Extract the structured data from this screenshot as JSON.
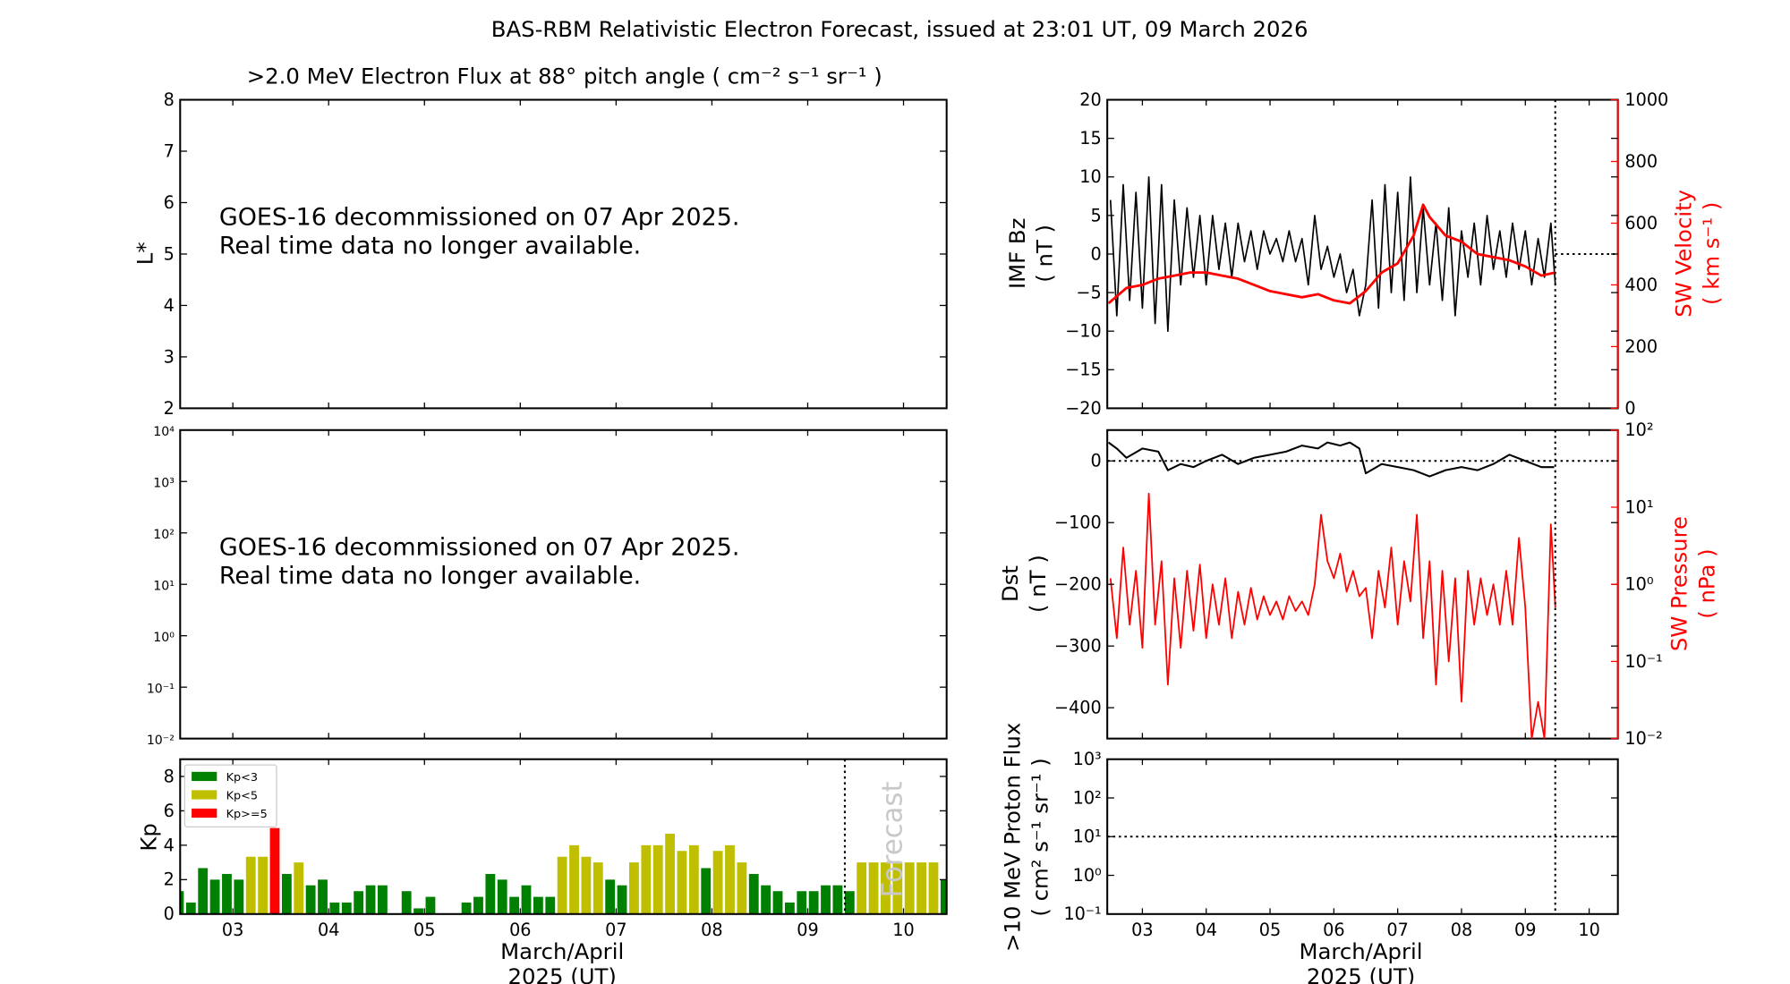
{
  "figure": {
    "title": "BAS-RBM Relativistic Electron Forecast, issued at 23:01 UT, 09 March 2026",
    "x_axis_label_line1": "March/April",
    "x_axis_label_line2": "2025 (UT)"
  },
  "chart_data": [
    {
      "id": "electron_flux_lstar",
      "type": "heatmap",
      "title": ">2.0 MeV Electron Flux at 88° pitch angle ( cm⁻² s⁻¹ sr⁻¹ )",
      "ylabel": "L*",
      "ylim": [
        2,
        8
      ],
      "yticks": [
        "2",
        "3",
        "4",
        "5",
        "6",
        "7",
        "8"
      ],
      "message_line1": "GOES-16 decommissioned on 07 Apr 2025.",
      "message_line2": "Real time data no longer available."
    },
    {
      "id": "electron_flux_geo",
      "type": "line",
      "yscale": "log",
      "ylim": [
        0.01,
        10000
      ],
      "yticks": [
        "10⁻²",
        "10⁻¹",
        "10⁰",
        "10¹",
        "10²",
        "10³",
        "10⁴"
      ],
      "message_line1": "GOES-16 decommissioned on 07 Apr 2025.",
      "message_line2": "Real time data no longer available."
    },
    {
      "id": "kp",
      "type": "bar",
      "ylabel": "Kp",
      "ylim": [
        0,
        9
      ],
      "yticks": [
        "0",
        "2",
        "4",
        "6",
        "8"
      ],
      "xticks": [
        "03",
        "04",
        "05",
        "06",
        "07",
        "08",
        "09",
        "10"
      ],
      "forecast_label": "Forecast",
      "forecast_start": "09 09:18",
      "legend": [
        {
          "label": "Kp<3",
          "color": "#008000"
        },
        {
          "label": "Kp<5",
          "color": "#bfbf00"
        },
        {
          "label": "Kp>=5",
          "color": "#ff0000"
        }
      ],
      "legend_position": "top-left",
      "bars": [
        [
          "02 09",
          1.33
        ],
        [
          "02 12",
          0.67
        ],
        [
          "02 15",
          2.67
        ],
        [
          "02 18",
          2.0
        ],
        [
          "02 21",
          2.33
        ],
        [
          "03 00",
          2.0
        ],
        [
          "03 03",
          3.33
        ],
        [
          "03 06",
          3.33
        ],
        [
          "03 09",
          5.0
        ],
        [
          "03 12",
          2.33
        ],
        [
          "03 15",
          3.0
        ],
        [
          "03 18",
          1.67
        ],
        [
          "03 21",
          2.0
        ],
        [
          "04 00",
          0.67
        ],
        [
          "04 03",
          0.67
        ],
        [
          "04 06",
          1.33
        ],
        [
          "04 09",
          1.67
        ],
        [
          "04 12",
          1.67
        ],
        [
          "04 15",
          0
        ],
        [
          "04 18",
          1.33
        ],
        [
          "04 21",
          0.33
        ],
        [
          "05 00",
          1.0
        ],
        [
          "05 03",
          0
        ],
        [
          "05 06",
          0
        ],
        [
          "05 09",
          0.67
        ],
        [
          "05 12",
          1.0
        ],
        [
          "05 15",
          2.33
        ],
        [
          "05 18",
          2.0
        ],
        [
          "05 21",
          1.0
        ],
        [
          "06 00",
          1.67
        ],
        [
          "06 03",
          1.0
        ],
        [
          "06 06",
          1.0
        ],
        [
          "06 09",
          3.33
        ],
        [
          "06 12",
          4.0
        ],
        [
          "06 15",
          3.33
        ],
        [
          "06 18",
          3.0
        ],
        [
          "06 21",
          2.0
        ],
        [
          "07 00",
          1.67
        ],
        [
          "07 03",
          3.0
        ],
        [
          "07 06",
          4.0
        ],
        [
          "07 09",
          4.0
        ],
        [
          "07 12",
          4.67
        ],
        [
          "07 15",
          3.67
        ],
        [
          "07 18",
          4.0
        ],
        [
          "07 21",
          2.67
        ],
        [
          "08 00",
          3.67
        ],
        [
          "08 03",
          4.0
        ],
        [
          "08 06",
          3.0
        ],
        [
          "08 09",
          2.33
        ],
        [
          "08 12",
          1.67
        ],
        [
          "08 15",
          1.33
        ],
        [
          "08 18",
          0.67
        ],
        [
          "08 21",
          1.33
        ],
        [
          "09 00",
          1.33
        ],
        [
          "09 03",
          1.67
        ],
        [
          "09 06",
          1.67
        ],
        [
          "09 09",
          1.33
        ],
        [
          "09 12",
          3.0
        ],
        [
          "09 15",
          3.0
        ],
        [
          "09 18",
          3.0
        ],
        [
          "09 21",
          3.0
        ],
        [
          "10 00",
          3.0
        ],
        [
          "10 03",
          3.0
        ],
        [
          "10 06",
          3.0
        ],
        [
          "10 09",
          2.0
        ]
      ]
    },
    {
      "id": "imf_sw_velocity",
      "type": "line",
      "ylabel_left": "IMF Bz",
      "ylabel_left_unit": "( nT )",
      "ylim_left": [
        -20,
        20
      ],
      "yticks_left": [
        "−20",
        "−15",
        "−10",
        "−5",
        "0",
        "5",
        "10",
        "15",
        "20"
      ],
      "ylabel_right": "SW Velocity",
      "ylabel_right_unit": "( km s⁻¹ )",
      "ylim_right": [
        0,
        1000
      ],
      "yticks_right": [
        "0",
        "200",
        "400",
        "600",
        "800",
        "1000"
      ],
      "series": [
        {
          "key": "bz",
          "color": "#000000",
          "x": [
            2.5,
            2.6,
            2.7,
            2.8,
            2.9,
            3.0,
            3.1,
            3.2,
            3.3,
            3.4,
            3.5,
            3.6,
            3.7,
            3.8,
            3.9,
            4.0,
            4.1,
            4.2,
            4.3,
            4.4,
            4.5,
            4.6,
            4.7,
            4.8,
            4.9,
            5.0,
            5.1,
            5.2,
            5.3,
            5.4,
            5.5,
            5.6,
            5.7,
            5.8,
            5.9,
            6.0,
            6.1,
            6.2,
            6.3,
            6.4,
            6.5,
            6.6,
            6.7,
            6.8,
            6.9,
            7.0,
            7.1,
            7.2,
            7.3,
            7.4,
            7.5,
            7.6,
            7.7,
            7.8,
            7.9,
            8.0,
            8.1,
            8.2,
            8.3,
            8.4,
            8.5,
            8.6,
            8.7,
            8.8,
            8.9,
            9.0,
            9.1,
            9.2,
            9.3,
            9.4,
            9.47
          ],
          "y": [
            7,
            -8,
            9,
            -6,
            8,
            -7,
            10,
            -9,
            9,
            -10,
            7,
            -4,
            6,
            -3,
            5,
            -4,
            5,
            -2,
            4,
            -3,
            4,
            -1,
            3,
            -2,
            3,
            0,
            2,
            -1,
            3,
            -1,
            2,
            -4,
            5,
            -2,
            1,
            -3,
            0,
            -5,
            -2,
            -8,
            -4,
            7,
            -7,
            9,
            -5,
            8,
            -6,
            10,
            -5,
            6,
            -4,
            4,
            -6,
            6,
            -8,
            3,
            -3,
            4,
            -4,
            5,
            -2,
            3,
            -3,
            4,
            -2,
            3,
            -4,
            2,
            -3,
            4,
            -4
          ]
        },
        {
          "key": "velocity",
          "color": "#ff0000",
          "x": [
            2.47,
            2.75,
            3.0,
            3.25,
            3.5,
            3.75,
            4.0,
            4.25,
            4.5,
            4.75,
            5.0,
            5.25,
            5.5,
            5.75,
            6.0,
            6.25,
            6.5,
            6.75,
            7.0,
            7.25,
            7.4,
            7.5,
            7.75,
            8.0,
            8.25,
            8.5,
            8.75,
            9.0,
            9.25,
            9.47
          ],
          "y": [
            340,
            390,
            400,
            420,
            430,
            440,
            440,
            430,
            420,
            400,
            380,
            370,
            360,
            370,
            350,
            340,
            380,
            440,
            470,
            560,
            660,
            620,
            560,
            540,
            500,
            490,
            480,
            460,
            430,
            440
          ]
        }
      ],
      "zero_line": 0,
      "forecast_line": "09 11:15"
    },
    {
      "id": "dst_sw_pressure",
      "type": "line",
      "ylabel_left": "Dst",
      "ylabel_left_unit": "( nT )",
      "ylim_left": [
        -450,
        50
      ],
      "yticks_left": [
        "−400",
        "−300",
        "−200",
        "−100",
        "0"
      ],
      "ylabel_right": "SW Pressure",
      "ylabel_right_unit": "( nPa )",
      "yscale_right": "log",
      "ylim_right": [
        0.01,
        100
      ],
      "yticks_right": [
        "10⁻²",
        "10⁻¹",
        "10⁰",
        "10¹",
        "10²"
      ],
      "series": [
        {
          "key": "dst",
          "color": "#000000",
          "x": [
            2.47,
            2.6,
            2.75,
            3.0,
            3.25,
            3.4,
            3.6,
            3.8,
            4.0,
            4.25,
            4.5,
            4.75,
            5.0,
            5.25,
            5.5,
            5.75,
            5.9,
            6.1,
            6.25,
            6.4,
            6.5,
            6.75,
            7.0,
            7.25,
            7.5,
            7.75,
            8.0,
            8.25,
            8.5,
            8.75,
            9.0,
            9.25,
            9.45
          ],
          "y": [
            30,
            20,
            5,
            20,
            15,
            -15,
            -5,
            -10,
            0,
            10,
            -5,
            5,
            10,
            15,
            25,
            20,
            30,
            25,
            30,
            20,
            -20,
            -5,
            -10,
            -15,
            -25,
            -15,
            -10,
            -15,
            -5,
            10,
            0,
            -10,
            -10
          ]
        },
        {
          "key": "pressure",
          "color": "#ff0000",
          "x": [
            2.5,
            2.6,
            2.7,
            2.8,
            2.9,
            3.0,
            3.1,
            3.2,
            3.3,
            3.4,
            3.5,
            3.6,
            3.7,
            3.8,
            3.9,
            4.0,
            4.1,
            4.2,
            4.3,
            4.4,
            4.5,
            4.6,
            4.7,
            4.8,
            4.9,
            5.0,
            5.1,
            5.2,
            5.3,
            5.4,
            5.5,
            5.6,
            5.7,
            5.8,
            5.9,
            6.0,
            6.1,
            6.2,
            6.3,
            6.4,
            6.5,
            6.6,
            6.7,
            6.8,
            6.9,
            7.0,
            7.1,
            7.2,
            7.3,
            7.4,
            7.5,
            7.6,
            7.7,
            7.8,
            7.9,
            8.0,
            8.1,
            8.2,
            8.3,
            8.4,
            8.5,
            8.6,
            8.7,
            8.8,
            8.9,
            9.0,
            9.1,
            9.2,
            9.3,
            9.4,
            9.47
          ],
          "y": [
            1.2,
            0.2,
            3,
            0.3,
            1.5,
            0.15,
            15,
            0.3,
            2,
            0.05,
            1.2,
            0.15,
            1.5,
            0.25,
            1.8,
            0.2,
            1,
            0.3,
            1.2,
            0.2,
            0.8,
            0.3,
            0.9,
            0.35,
            0.7,
            0.4,
            0.6,
            0.35,
            0.7,
            0.45,
            0.6,
            0.4,
            1.0,
            8,
            2,
            1.2,
            2.5,
            0.8,
            1.5,
            0.7,
            0.9,
            0.2,
            1.5,
            0.5,
            3,
            0.3,
            2,
            0.6,
            8,
            0.2,
            2,
            0.05,
            1.5,
            0.1,
            1.2,
            0.03,
            1.5,
            0.3,
            1.2,
            0.4,
            1,
            0.3,
            1.5,
            0.3,
            4,
            0.5,
            0.01,
            0.03,
            0.01,
            6,
            0.5
          ]
        }
      ],
      "zero_line": 0,
      "forecast_line": "09 11:15"
    },
    {
      "id": "proton_flux",
      "type": "line",
      "ylabel": ">10 MeV Proton Flux",
      "ylabel_unit": "( cm² s⁻¹ sr⁻¹ )",
      "yscale": "log",
      "ylim": [
        0.1,
        1000
      ],
      "yticks": [
        "10⁻¹",
        "10⁰",
        "10¹",
        "10²",
        "10³"
      ],
      "threshold_line": 10,
      "xticks": [
        "03",
        "04",
        "05",
        "06",
        "07",
        "08",
        "09",
        "10"
      ],
      "forecast_line": "09 11:15"
    }
  ]
}
